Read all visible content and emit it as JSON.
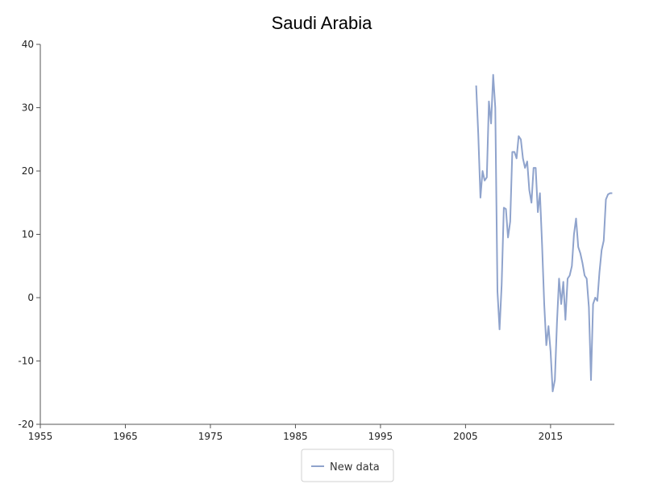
{
  "chart_data": {
    "type": "line",
    "title": "Saudi Arabia",
    "xlabel": "",
    "ylabel": "",
    "xlim": [
      1955,
      2022.5
    ],
    "ylim": [
      -20,
      40
    ],
    "x_ticks": [
      1955,
      1965,
      1975,
      1985,
      1995,
      2005,
      2015
    ],
    "y_ticks": [
      -20,
      -10,
      0,
      10,
      20,
      30,
      40
    ],
    "grid": false,
    "legend_position": "bottom-center",
    "series": [
      {
        "name": "New data",
        "color": "#8fa3cc",
        "x": [
          2006.25,
          2006.5,
          2006.75,
          2007.0,
          2007.25,
          2007.5,
          2007.75,
          2008.0,
          2008.25,
          2008.5,
          2008.75,
          2009.0,
          2009.25,
          2009.5,
          2009.75,
          2010.0,
          2010.25,
          2010.5,
          2010.75,
          2011.0,
          2011.25,
          2011.5,
          2011.75,
          2012.0,
          2012.25,
          2012.5,
          2012.75,
          2013.0,
          2013.25,
          2013.5,
          2013.75,
          2014.0,
          2014.25,
          2014.5,
          2014.75,
          2015.0,
          2015.25,
          2015.5,
          2015.75,
          2016.0,
          2016.25,
          2016.5,
          2016.75,
          2017.0,
          2017.25,
          2017.5,
          2017.75,
          2018.0,
          2018.25,
          2018.5,
          2018.75,
          2019.0,
          2019.25,
          2019.5,
          2019.75,
          2020.0,
          2020.25,
          2020.5,
          2020.75,
          2021.0,
          2021.25,
          2021.5,
          2021.75,
          2022.0,
          2022.25
        ],
        "y": [
          33.5,
          25.8,
          15.8,
          20.0,
          18.5,
          19.0,
          31.0,
          27.5,
          35.2,
          30.0,
          1.0,
          -5.0,
          2.0,
          14.2,
          14.0,
          9.5,
          12.0,
          23.0,
          23.0,
          22.0,
          25.5,
          25.0,
          22.0,
          20.5,
          21.5,
          17.0,
          15.0,
          20.5,
          20.5,
          13.5,
          16.5,
          8.5,
          -1.0,
          -7.5,
          -4.5,
          -8.5,
          -14.8,
          -13.0,
          -4.0,
          3.0,
          -1.0,
          2.5,
          -3.5,
          3.0,
          3.5,
          5.0,
          10.0,
          12.5,
          8.0,
          7.0,
          5.5,
          3.5,
          3.0,
          -1.5,
          -13.0,
          -1.0,
          0.0,
          -0.5,
          4.0,
          7.5,
          9.0,
          15.5,
          16.3,
          16.5,
          16.5
        ]
      }
    ]
  }
}
